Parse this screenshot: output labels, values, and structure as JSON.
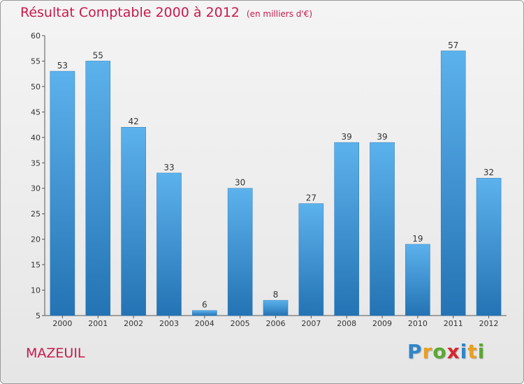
{
  "header": {
    "title": "Résultat Comptable 2000 à 2012",
    "subtitle": "(en milliers d'€)"
  },
  "footer": {
    "town": "MAZEUIL",
    "logo": [
      "P",
      "r",
      "o",
      "x",
      "i",
      "t",
      "i"
    ],
    "logo_colors": [
      "#2f86c8",
      "#e8a020",
      "#5aa832",
      "#d8272e",
      "#2f86c8",
      "#e8a020",
      "#5aa832"
    ]
  },
  "chart_data": {
    "type": "bar",
    "title": "Résultat Comptable 2000 à 2012",
    "subtitle": "(en milliers d'€)",
    "categories": [
      "2000",
      "2001",
      "2002",
      "2003",
      "2004",
      "2005",
      "2006",
      "2007",
      "2008",
      "2009",
      "2010",
      "2011",
      "2012"
    ],
    "values": [
      53,
      55,
      42,
      33,
      6,
      30,
      8,
      27,
      39,
      39,
      19,
      57,
      32
    ],
    "ylim": [
      5,
      60
    ],
    "yticks": [
      5,
      10,
      15,
      20,
      25,
      30,
      35,
      40,
      45,
      50,
      55,
      60
    ],
    "grid": false,
    "legend": "none",
    "bar_color": "#3a93d8",
    "title_color": "#c8194b"
  }
}
